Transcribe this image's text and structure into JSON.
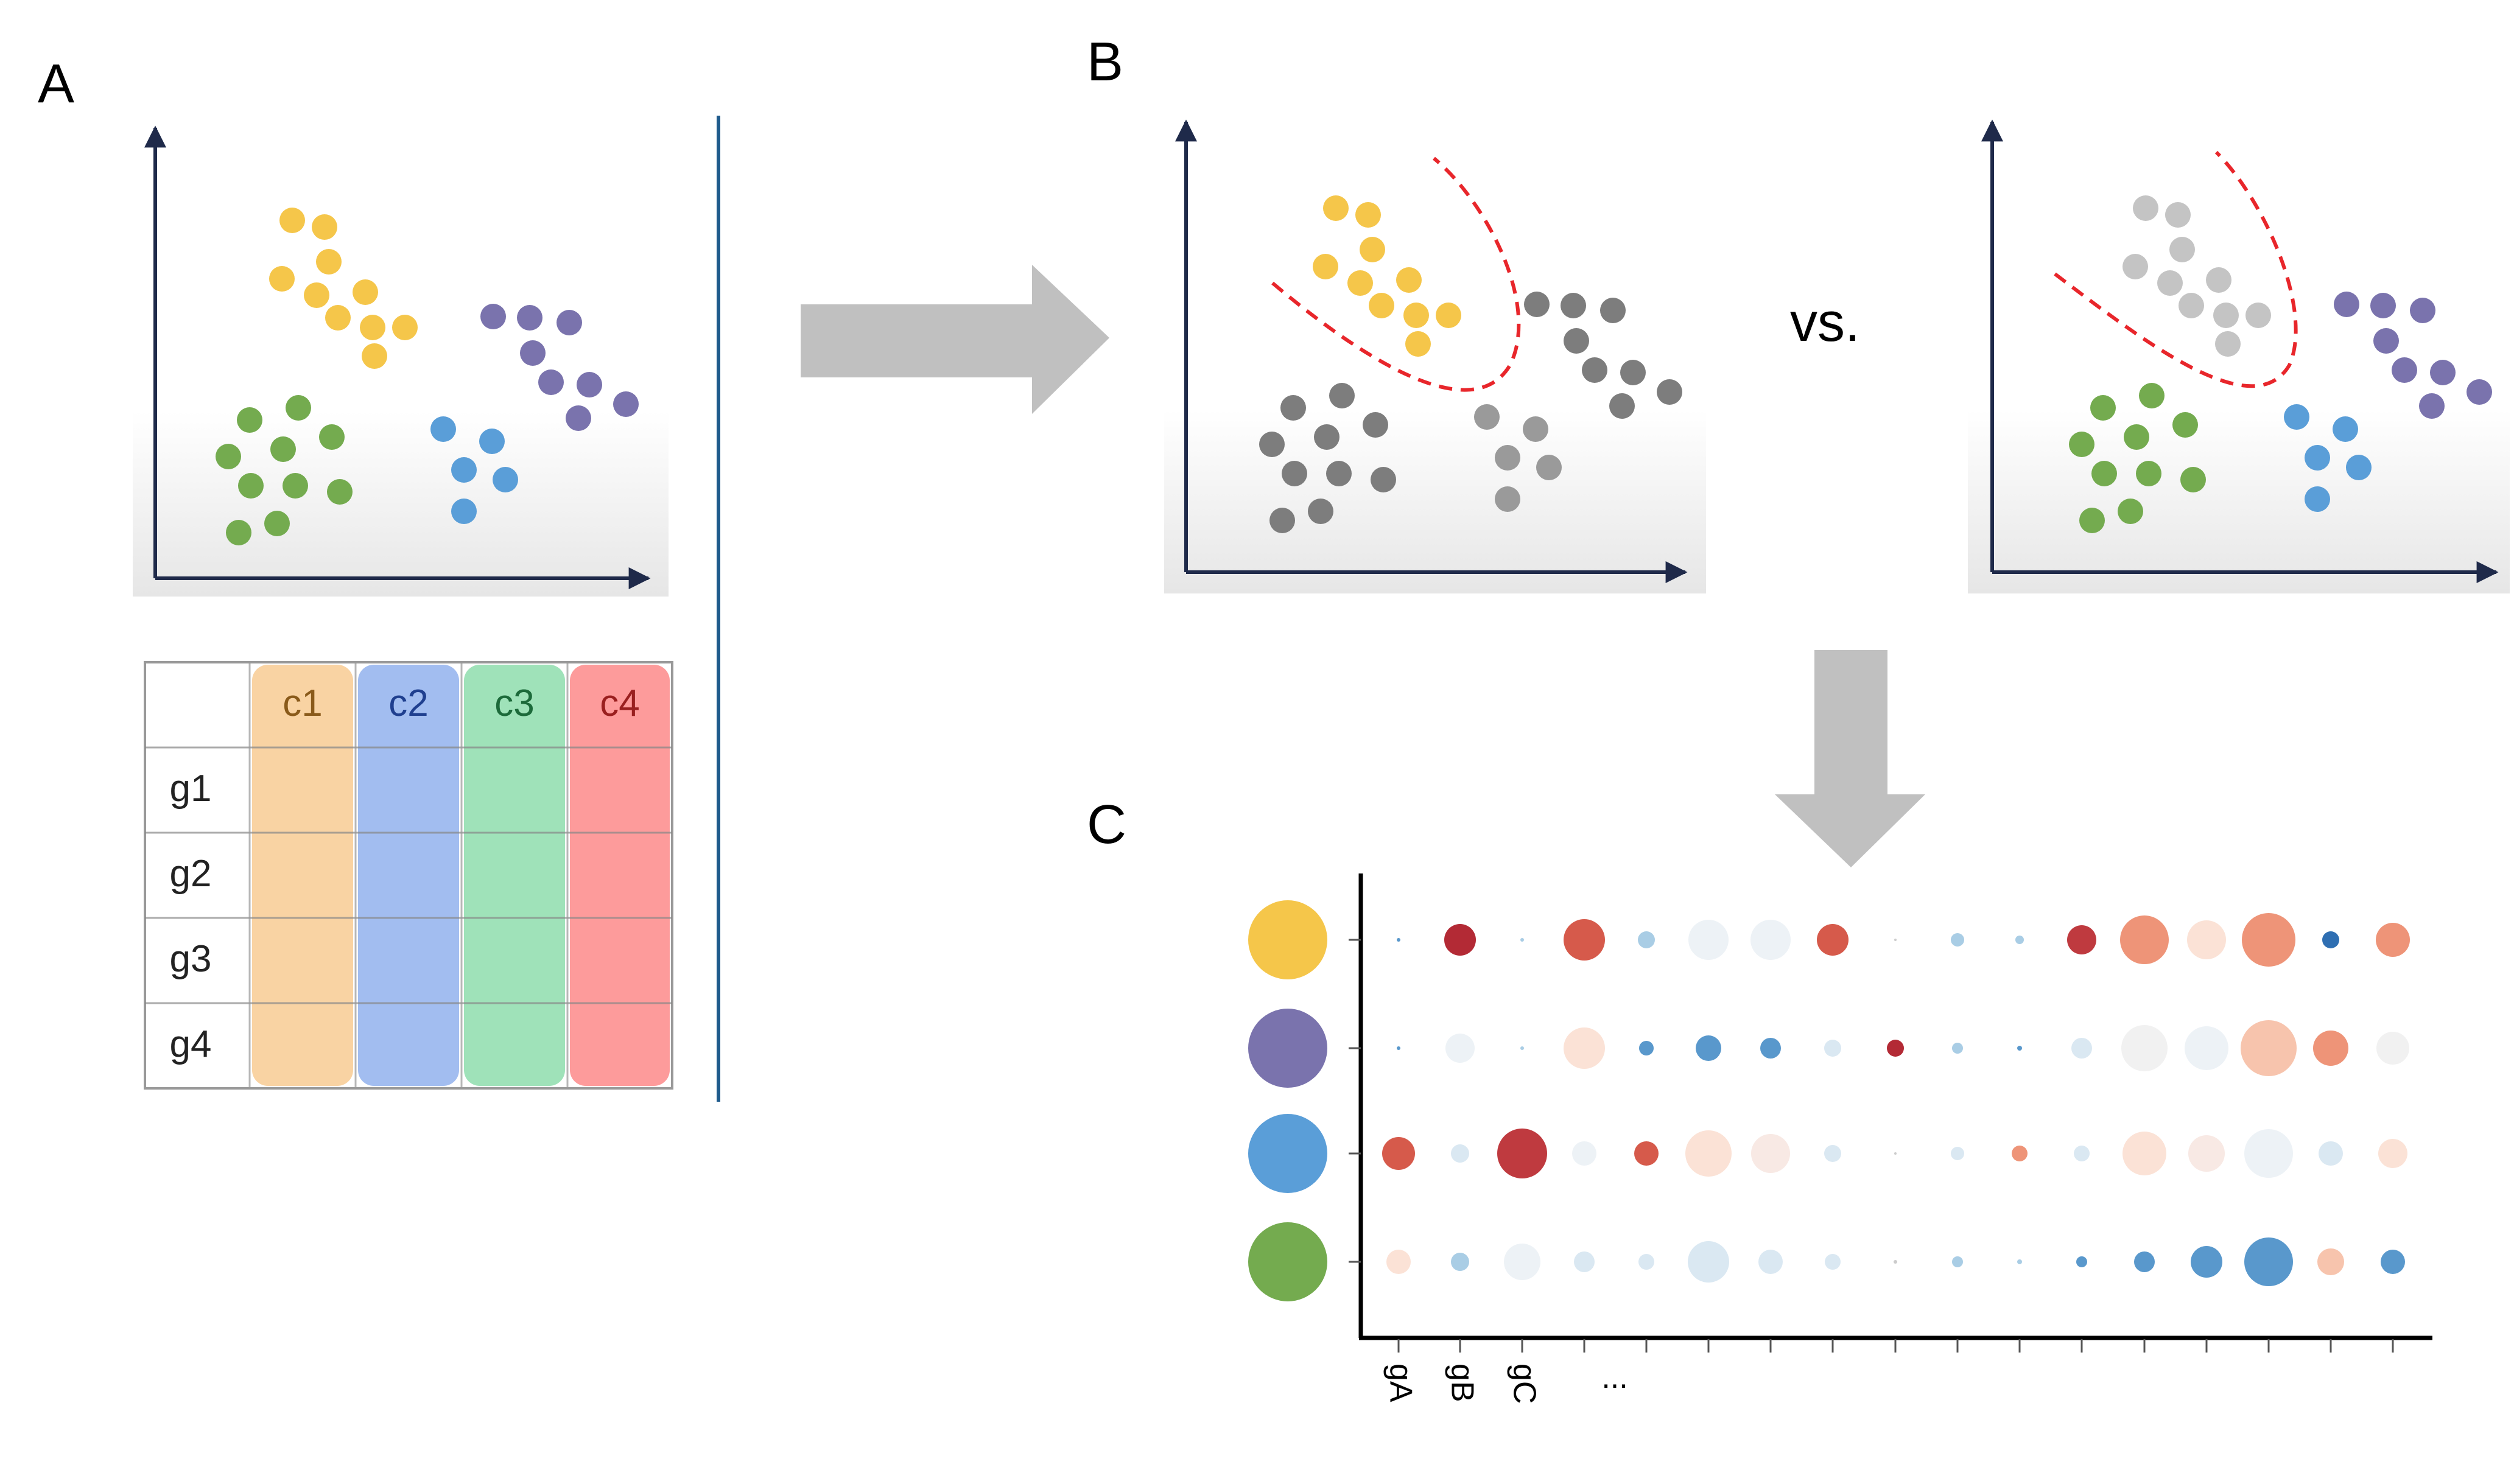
{
  "panels": {
    "a": "A",
    "b": "B",
    "c": "C"
  },
  "vs_text": "vs.",
  "table": {
    "columns": [
      "c1",
      "c2",
      "c3",
      "c4"
    ],
    "rows": [
      "g1",
      "g2",
      "g3",
      "g4"
    ],
    "column_fill": [
      "#f9d3a3",
      "#a2bdf0",
      "#9fe2b9",
      "#fd9b9b"
    ],
    "column_text": [
      "#8a5a1a",
      "#1f3f8f",
      "#1c6a3a",
      "#9a1f1f"
    ]
  },
  "cluster_colors": {
    "yellow": "#f5c64a",
    "purple": "#7a73ad",
    "blue": "#5a9ed8",
    "green": "#74ab4f",
    "gray_dark": "#7d7d7d",
    "gray_light": "#c4c4c4"
  },
  "dotplot": {
    "row_colors": [
      "#f5c64a",
      "#7a73ad",
      "#5a9ed8",
      "#74ab4f"
    ],
    "xtick_labels": [
      "gA",
      "gB",
      "gC",
      "..."
    ]
  }
}
